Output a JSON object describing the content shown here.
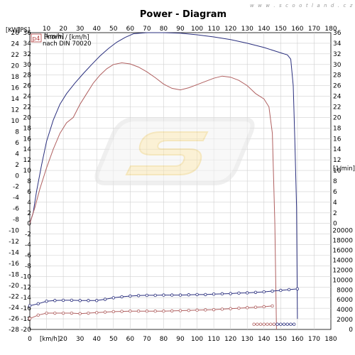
{
  "watermark": "w w w . s c o o t l a n d . c z",
  "chart_data": {
    "type": "line",
    "title": "Power - Diagram",
    "x_unit": "[km/h]",
    "xlim": [
      0,
      180
    ],
    "x_ticks": [
      0,
      10,
      20,
      30,
      40,
      50,
      60,
      70,
      80,
      90,
      100,
      110,
      120,
      130,
      140,
      150,
      160,
      170,
      180
    ],
    "y_left_kw": {
      "label": "[KW]",
      "range": [
        -28,
        26
      ],
      "ticks": [
        26,
        24,
        22,
        20,
        18,
        16,
        14,
        12,
        10,
        8,
        6,
        4,
        2,
        0,
        -2,
        -4,
        -6,
        -8,
        -10,
        -12,
        -14,
        -16,
        -18,
        -20,
        -22,
        -24,
        -26,
        -28
      ]
    },
    "y_left_ps": {
      "label": "[PS]",
      "range": [
        -20,
        36
      ],
      "ticks": [
        36,
        34,
        32,
        30,
        28,
        26,
        24,
        22,
        20,
        18,
        16,
        14,
        12,
        10,
        8,
        6,
        4,
        2,
        0,
        -2,
        -4,
        -6,
        -8,
        -10,
        -12,
        -14,
        -16,
        -18,
        -20
      ]
    },
    "y_right_ps": {
      "label": "[PS]",
      "range": [
        -20,
        36
      ],
      "ticks": [
        36,
        34,
        32,
        30,
        28,
        26,
        24,
        22,
        20,
        18,
        16,
        14,
        12,
        10,
        8,
        6,
        4,
        2,
        0
      ]
    },
    "y_right_rpm": {
      "label": "[1/min]",
      "range": [
        0,
        20000
      ],
      "ticks": [
        20000,
        18000,
        16000,
        14000,
        12000,
        10000,
        8000,
        6000,
        4000,
        2000,
        0
      ]
    },
    "legend": {
      "marker": "p4",
      "line1": "Pnorm / [km/h]",
      "line2": "nach DIN 70020"
    },
    "series": [
      {
        "color": "#2a2f7e",
        "axis": "ps",
        "x": [
          0,
          2,
          4,
          7,
          10,
          14,
          18,
          22,
          27,
          32,
          37,
          42,
          47,
          52,
          57,
          62,
          70,
          80,
          90,
          100,
          110,
          120,
          130,
          140,
          146,
          150,
          154,
          156,
          157.5,
          158.5,
          159.5,
          160
        ],
        "values": [
          0,
          2,
          6,
          11,
          15.5,
          19.5,
          22.5,
          24.5,
          26.5,
          28.3,
          30,
          31.6,
          33,
          34.2,
          35.1,
          35.8,
          36,
          36,
          35.9,
          35.6,
          35.2,
          34.7,
          34,
          33.2,
          32.6,
          32.2,
          31.8,
          31,
          26,
          15,
          3,
          -18
        ]
      },
      {
        "color": "#b06060",
        "axis": "ps",
        "x": [
          0,
          3,
          6,
          10,
          14,
          18,
          22,
          26,
          30,
          34,
          38,
          42,
          46,
          50,
          55,
          60,
          65,
          70,
          75,
          80,
          85,
          90,
          95,
          100,
          105,
          110,
          115,
          120,
          125,
          130,
          135,
          140,
          143,
          145,
          146.5,
          147.5
        ],
        "values": [
          0,
          3,
          6.5,
          10.5,
          14,
          17,
          19,
          20,
          22.5,
          24.5,
          26.5,
          28,
          29.2,
          30,
          30.3,
          30.1,
          29.5,
          28.6,
          27.5,
          26.3,
          25.5,
          25.2,
          25.6,
          26.2,
          26.8,
          27.4,
          27.8,
          27.6,
          27,
          26,
          24.5,
          23.5,
          22,
          17,
          0,
          -20
        ]
      },
      {
        "color": "#2a2f7e",
        "axis": "rpm",
        "marker": "circle",
        "x": [
          0,
          5,
          10,
          15,
          20,
          25,
          30,
          35,
          40,
          45,
          50,
          55,
          60,
          65,
          70,
          75,
          80,
          85,
          90,
          95,
          100,
          105,
          110,
          115,
          120,
          125,
          130,
          135,
          140,
          145,
          150,
          155,
          160
        ],
        "values": [
          4800,
          5200,
          5700,
          5850,
          5900,
          5900,
          5850,
          5850,
          5850,
          6100,
          6400,
          6600,
          6750,
          6850,
          6900,
          6900,
          6950,
          6950,
          6950,
          7000,
          7050,
          7050,
          7150,
          7200,
          7250,
          7350,
          7400,
          7500,
          7600,
          7750,
          7900,
          8050,
          8200
        ]
      },
      {
        "color": "#b06060",
        "axis": "rpm",
        "marker": "circle",
        "x": [
          0,
          5,
          10,
          15,
          20,
          25,
          30,
          35,
          40,
          45,
          50,
          55,
          60,
          65,
          70,
          75,
          80,
          85,
          90,
          95,
          100,
          105,
          110,
          115,
          120,
          125,
          130,
          135,
          140,
          145
        ],
        "values": [
          2200,
          2900,
          3300,
          3300,
          3300,
          3300,
          3200,
          3300,
          3400,
          3500,
          3600,
          3650,
          3700,
          3700,
          3700,
          3700,
          3700,
          3750,
          3800,
          3850,
          3900,
          3950,
          4000,
          4100,
          4200,
          4300,
          4400,
          4500,
          4600,
          4750
        ]
      },
      {
        "color": "#2a2f7e",
        "axis": "rpm",
        "marker": "circle",
        "x": [
          146,
          148,
          150,
          152,
          154,
          156,
          158
        ],
        "values": [
          1050,
          1050,
          1050,
          1050,
          1050,
          1050,
          1050
        ]
      },
      {
        "color": "#b06060",
        "axis": "rpm",
        "marker": "circle",
        "x": [
          134,
          136,
          138,
          140,
          142,
          144,
          146
        ],
        "values": [
          1050,
          1050,
          1050,
          1050,
          1050,
          1050,
          1050
        ]
      }
    ]
  }
}
